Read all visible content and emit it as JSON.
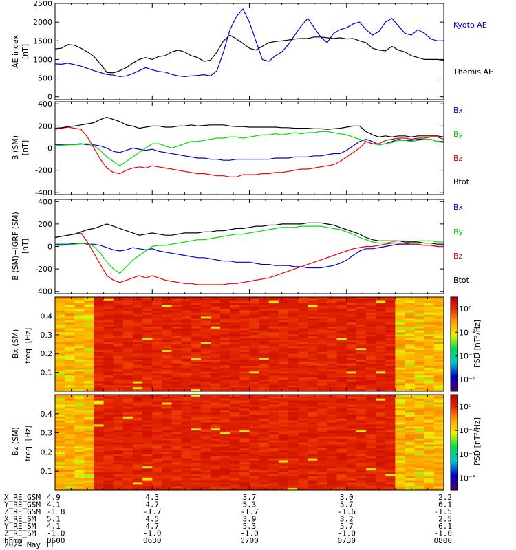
{
  "chart_data": [
    {
      "type": "line",
      "ylabel": "AE index",
      "yunit": "[nT]",
      "ylim": [
        -80,
        2500
      ],
      "yticks": [
        "2500",
        "2000",
        "1500",
        "1000",
        "500",
        "0"
      ],
      "x": [
        0,
        2,
        4,
        6,
        8,
        10,
        12,
        14,
        16,
        18,
        20,
        22,
        24,
        26,
        28,
        30,
        32,
        34,
        36,
        38,
        40,
        42,
        44,
        46,
        48,
        50,
        52,
        54,
        56,
        58,
        60,
        62,
        64,
        66,
        68,
        70,
        72,
        74,
        76,
        78,
        80,
        82,
        84,
        86,
        88,
        90,
        92,
        94,
        96,
        98,
        100,
        102,
        104,
        106,
        108,
        110,
        112,
        114,
        116,
        118,
        120
      ],
      "series": [
        {
          "name": "Kyoto AE",
          "color": "#0000cc",
          "values": [
            880,
            870,
            900,
            860,
            820,
            760,
            700,
            650,
            600,
            580,
            540,
            560,
            620,
            700,
            780,
            720,
            680,
            660,
            600,
            560,
            540,
            560,
            570,
            590,
            560,
            700,
            1200,
            1800,
            2150,
            2350,
            2000,
            1500,
            1000,
            950,
            1100,
            1200,
            1400,
            1650,
            1900,
            2100,
            1850,
            1600,
            1450,
            1700,
            1800,
            1850,
            1950,
            2000,
            1800,
            1650,
            1750,
            2000,
            2100,
            1900,
            1700,
            1650,
            1800,
            1700,
            1550,
            1500,
            1500
          ]
        },
        {
          "name": "Themis AE",
          "color": "#000000",
          "values": [
            1280,
            1300,
            1400,
            1380,
            1300,
            1200,
            1080,
            880,
            650,
            640,
            700,
            780,
            900,
            1000,
            1050,
            1000,
            1080,
            1100,
            1200,
            1250,
            1200,
            1100,
            1050,
            950,
            980,
            1200,
            1500,
            1650,
            1550,
            1430,
            1300,
            1250,
            1350,
            1450,
            1480,
            1500,
            1520,
            1550,
            1560,
            1560,
            1600,
            1600,
            1580,
            1560,
            1580,
            1550,
            1560,
            1500,
            1450,
            1300,
            1250,
            1230,
            1350,
            1250,
            1200,
            1100,
            1050,
            1000,
            1000,
            1000,
            980
          ]
        }
      ]
    },
    {
      "type": "line",
      "ylabel": "B (SM)",
      "yunit": "[nT]",
      "ylim": [
        -420,
        420
      ],
      "yticks": [
        "400",
        "200",
        "0",
        "-200",
        "-400"
      ],
      "x": [
        0,
        2,
        4,
        6,
        8,
        10,
        12,
        14,
        16,
        18,
        20,
        22,
        24,
        26,
        28,
        30,
        32,
        34,
        36,
        38,
        40,
        42,
        44,
        46,
        48,
        50,
        52,
        54,
        56,
        58,
        60,
        62,
        64,
        66,
        68,
        70,
        72,
        74,
        76,
        78,
        80,
        82,
        84,
        86,
        88,
        90,
        92,
        94,
        96,
        98,
        100,
        102,
        104,
        106,
        108,
        110,
        112,
        114,
        116,
        118,
        120
      ],
      "series": [
        {
          "name": "Bx",
          "color": "#0000cc",
          "values": [
            30,
            30,
            30,
            35,
            40,
            30,
            30,
            20,
            0,
            -30,
            -40,
            -20,
            0,
            -10,
            -20,
            -10,
            -30,
            -40,
            -50,
            -60,
            -70,
            -80,
            -90,
            -90,
            -100,
            -100,
            -110,
            -110,
            -100,
            -100,
            -100,
            -100,
            -100,
            -100,
            -90,
            -90,
            -90,
            -80,
            -80,
            -80,
            -70,
            -70,
            -60,
            -50,
            -50,
            -20,
            20,
            60,
            80,
            60,
            30,
            40,
            60,
            80,
            70,
            70,
            80,
            80,
            80,
            60,
            60
          ]
        },
        {
          "name": "By",
          "color": "#00dd00",
          "values": [
            20,
            25,
            30,
            30,
            35,
            40,
            20,
            -20,
            -80,
            -120,
            -160,
            -120,
            -80,
            -40,
            0,
            40,
            40,
            20,
            0,
            20,
            40,
            60,
            60,
            70,
            80,
            90,
            90,
            100,
            100,
            90,
            100,
            110,
            120,
            120,
            130,
            120,
            130,
            140,
            130,
            140,
            140,
            150,
            150,
            140,
            130,
            120,
            100,
            80,
            60,
            40,
            30,
            40,
            50,
            70,
            70,
            60,
            70,
            80,
            80,
            60,
            50
          ]
        },
        {
          "name": "Bz",
          "color": "#ee0000",
          "values": [
            170,
            180,
            190,
            180,
            170,
            100,
            0,
            -100,
            -180,
            -220,
            -230,
            -200,
            -180,
            -170,
            -180,
            -160,
            -170,
            -180,
            -190,
            -200,
            -210,
            -220,
            -230,
            -230,
            -240,
            -250,
            -250,
            -260,
            -260,
            -240,
            -240,
            -240,
            -230,
            -230,
            -220,
            -220,
            -210,
            -200,
            -190,
            -190,
            -180,
            -170,
            -160,
            -150,
            -120,
            -80,
            -40,
            0,
            60,
            40,
            40,
            70,
            80,
            90,
            90,
            80,
            90,
            90,
            100,
            100,
            80
          ]
        },
        {
          "name": "Btot",
          "color": "#000000",
          "values": [
            180,
            185,
            195,
            200,
            210,
            220,
            230,
            260,
            280,
            260,
            240,
            210,
            200,
            180,
            190,
            200,
            200,
            190,
            190,
            200,
            200,
            210,
            200,
            205,
            210,
            210,
            210,
            200,
            195,
            195,
            190,
            190,
            190,
            190,
            190,
            185,
            185,
            180,
            180,
            180,
            175,
            175,
            170,
            175,
            180,
            190,
            200,
            200,
            150,
            120,
            100,
            110,
            100,
            110,
            110,
            100,
            110,
            110,
            110,
            110,
            100
          ]
        }
      ]
    },
    {
      "type": "line",
      "ylabel": "B (SM)−IGRF (SM)",
      "yunit": "[nT]",
      "ylim": [
        -420,
        420
      ],
      "yticks": [
        "400",
        "200",
        "0",
        "-200",
        "-400"
      ],
      "x": [
        0,
        2,
        4,
        6,
        8,
        10,
        12,
        14,
        16,
        18,
        20,
        22,
        24,
        26,
        28,
        30,
        32,
        34,
        36,
        38,
        40,
        42,
        44,
        46,
        48,
        50,
        52,
        54,
        56,
        58,
        60,
        62,
        64,
        66,
        68,
        70,
        72,
        74,
        76,
        78,
        80,
        82,
        84,
        86,
        88,
        90,
        92,
        94,
        96,
        98,
        100,
        102,
        104,
        106,
        108,
        110,
        112,
        114,
        116,
        118,
        120
      ],
      "series": [
        {
          "name": "Bx",
          "color": "#0000cc",
          "values": [
            20,
            20,
            20,
            25,
            30,
            20,
            20,
            10,
            -10,
            -30,
            -40,
            -30,
            -10,
            -20,
            -30,
            -20,
            -40,
            -50,
            -60,
            -70,
            -80,
            -90,
            -100,
            -100,
            -110,
            -120,
            -130,
            -130,
            -140,
            -140,
            -140,
            -150,
            -160,
            -160,
            -170,
            -170,
            -170,
            -180,
            -180,
            -190,
            -190,
            -190,
            -180,
            -170,
            -150,
            -120,
            -80,
            -40,
            -20,
            -20,
            -10,
            0,
            10,
            20,
            20,
            20,
            20,
            10,
            10,
            0,
            0
          ]
        },
        {
          "name": "By",
          "color": "#00dd00",
          "values": [
            10,
            10,
            15,
            20,
            25,
            30,
            0,
            -60,
            -140,
            -200,
            -240,
            -180,
            -120,
            -80,
            -40,
            0,
            10,
            10,
            20,
            30,
            40,
            50,
            60,
            60,
            70,
            80,
            90,
            100,
            110,
            110,
            120,
            130,
            140,
            150,
            160,
            170,
            170,
            170,
            180,
            180,
            180,
            180,
            170,
            160,
            150,
            130,
            110,
            80,
            60,
            40,
            30,
            30,
            40,
            50,
            50,
            40,
            50,
            50,
            50,
            40,
            40
          ]
        },
        {
          "name": "Bz",
          "color": "#ee0000",
          "values": [
            80,
            90,
            100,
            110,
            120,
            40,
            -60,
            -160,
            -260,
            -300,
            -320,
            -300,
            -280,
            -260,
            -280,
            -260,
            -280,
            -300,
            -310,
            -320,
            -330,
            -330,
            -340,
            -340,
            -340,
            -340,
            -340,
            -330,
            -330,
            -320,
            -310,
            -300,
            -290,
            -280,
            -260,
            -240,
            -220,
            -200,
            -180,
            -160,
            -140,
            -120,
            -100,
            -80,
            -60,
            -40,
            -20,
            -10,
            0,
            0,
            10,
            20,
            30,
            30,
            30,
            20,
            20,
            10,
            10,
            0,
            0
          ]
        },
        {
          "name": "Btot",
          "color": "#000000",
          "values": [
            80,
            90,
            100,
            110,
            130,
            150,
            160,
            180,
            200,
            180,
            160,
            140,
            120,
            100,
            110,
            120,
            110,
            100,
            100,
            110,
            120,
            120,
            120,
            130,
            130,
            140,
            140,
            150,
            160,
            160,
            170,
            180,
            180,
            190,
            190,
            200,
            200,
            200,
            200,
            210,
            210,
            210,
            200,
            190,
            170,
            150,
            130,
            110,
            80,
            60,
            50,
            50,
            50,
            50,
            40,
            40,
            40,
            30,
            30,
            20,
            20
          ]
        }
      ]
    },
    {
      "type": "heatmap",
      "ylabel": "Bx (SM)",
      "yunit2": "freq",
      "yunit": "[Hz]",
      "yticks": [
        "0.4",
        "0.3",
        "0.2",
        "0.1"
      ],
      "ylim": [
        0,
        0.5
      ],
      "colorbar_label": "PSD [nT²/Hz]",
      "colorbar_ticks": [
        "10⁰",
        "10⁻²",
        "10⁻⁴",
        "10⁻⁶"
      ],
      "colorbar_log_range": [
        -7,
        1
      ]
    },
    {
      "type": "heatmap",
      "ylabel": "Bz (SM)",
      "yunit2": "freq",
      "yunit": "[Hz]",
      "yticks": [
        "0.4",
        "0.3",
        "0.2",
        "0.1"
      ],
      "ylim": [
        0,
        0.5
      ],
      "colorbar_label": "PSD [nT²/Hz]",
      "colorbar_ticks": [
        "10⁰",
        "10⁻²",
        "10⁻⁴",
        "10⁻⁶"
      ],
      "colorbar_log_range": [
        -7,
        1
      ]
    }
  ],
  "ephemeris": {
    "rows": [
      {
        "label": "X_RE_GSM",
        "values": [
          "4.9",
          "4.3",
          "3.7",
          "3.0",
          "2.2"
        ]
      },
      {
        "label": "Y_RE_GSM",
        "values": [
          "4.1",
          "4.7",
          "5.3",
          "5.7",
          "6.1"
        ]
      },
      {
        "label": "Z_RE_GSM",
        "values": [
          "-1.8",
          "-1.7",
          "-1.7",
          "-1.6",
          "-1.5"
        ]
      },
      {
        "label": "X_RE_SM",
        "values": [
          "5.1",
          "4.5",
          "3.9",
          "3.2",
          "2.5"
        ]
      },
      {
        "label": "Y_RE_SM",
        "values": [
          "4.1",
          "4.7",
          "5.3",
          "5.7",
          "6.1"
        ]
      },
      {
        "label": "Z_RE_SM",
        "values": [
          "-1.0",
          "-1.0",
          "-1.0",
          "-1.0",
          "-1.0"
        ]
      },
      {
        "label": "hhmm",
        "values": [
          "0600",
          "0630",
          "0700",
          "0730",
          "0800"
        ]
      }
    ],
    "date": "2024 May 11"
  }
}
